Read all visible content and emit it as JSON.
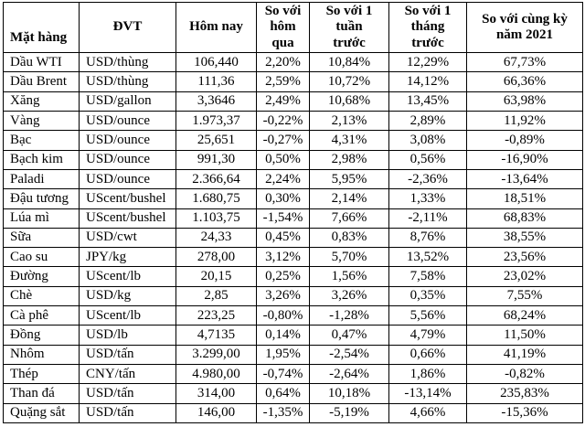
{
  "colors": {
    "text": "#000000",
    "border": "#000000",
    "background": "#ffffff"
  },
  "chart_data": {
    "type": "table",
    "columns": [
      "Mặt hàng",
      "ĐVT",
      "Hôm nay",
      "So với hôm qua",
      "So với 1 tuần trước",
      "So với 1 tháng trước",
      "So với cùng kỳ năm 2021"
    ],
    "header_lines": [
      "Mặt hàng",
      "ĐVT",
      "Hôm nay",
      "So với\nhôm\nqua",
      "So với 1\ntuần\ntrước",
      "So với 1\ntháng\ntrước",
      "So với cùng kỳ\nnăm 2021"
    ],
    "column_keys": [
      "commodity",
      "unit",
      "today",
      "vs-yesterday",
      "vs-1-week",
      "vs-1-month",
      "vs-2021"
    ],
    "rows": [
      [
        "Dầu WTI",
        "USD/thùng",
        "106,440",
        "2,20%",
        "10,84%",
        "12,29%",
        "67,73%"
      ],
      [
        "Dầu Brent",
        "USD/thùng",
        "111,36",
        "2,59%",
        "10,72%",
        "14,12%",
        "66,36%"
      ],
      [
        "Xăng",
        "USD/gallon",
        "3,3646",
        "2,49%",
        "10,68%",
        "13,45%",
        "63,98%"
      ],
      [
        "Vàng",
        "USD/ounce",
        "1.973,37",
        "-0,22%",
        "2,13%",
        "2,89%",
        "11,92%"
      ],
      [
        "Bạc",
        "USD/ounce",
        "25,651",
        "-0,27%",
        "4,31%",
        "3,08%",
        "-0,89%"
      ],
      [
        "Bạch kim",
        "USD/ounce",
        "991,30",
        "0,50%",
        "2,98%",
        "0,56%",
        "-16,90%"
      ],
      [
        "Paladi",
        "USD/ounce",
        "2.366,64",
        "2,24%",
        "5,95%",
        "-2,36%",
        "-13,64%"
      ],
      [
        "Đậu tương",
        "UScent/bushel",
        "1.680,75",
        "0,30%",
        "2,14%",
        "1,33%",
        "18,51%"
      ],
      [
        "Lúa mì",
        "UScent/bushel",
        "1.103,75",
        "-1,54%",
        "7,66%",
        "-2,11%",
        "68,83%"
      ],
      [
        "Sữa",
        "USD/cwt",
        "24,33",
        "0,45%",
        "0,83%",
        "8,76%",
        "38,55%"
      ],
      [
        "Cao su",
        "JPY/kg",
        "278,00",
        "3,12%",
        "5,70%",
        "13,52%",
        "23,56%"
      ],
      [
        "Đường",
        "UScent/lb",
        "20,15",
        "0,25%",
        "1,56%",
        "7,58%",
        "23,02%"
      ],
      [
        "Chè",
        "USD/kg",
        "2,85",
        "3,26%",
        "3,26%",
        "0,35%",
        "7,55%"
      ],
      [
        "Cà phê",
        "UScent/lb",
        "223,25",
        "-0,80%",
        "-1,28%",
        "5,56%",
        "68,24%"
      ],
      [
        "Đồng",
        "USD/lb",
        "4,7135",
        "0,14%",
        "0,47%",
        "4,79%",
        "11,50%"
      ],
      [
        "Nhôm",
        "USD/tấn",
        "3.299,00",
        "1,95%",
        "-2,54%",
        "0,66%",
        "41,19%"
      ],
      [
        "Thép",
        "CNY/tấn",
        "4.980,00",
        "-0,74%",
        "-2,64%",
        "1,86%",
        "-0,82%"
      ],
      [
        "Than đá",
        "USD/tấn",
        "314,00",
        "0,64%",
        "10,18%",
        "-13,14%",
        "235,83%"
      ],
      [
        "Quặng sắt",
        "USD/tấn",
        "146,00",
        "-1,35%",
        "-5,19%",
        "4,66%",
        "-15,36%"
      ]
    ]
  }
}
